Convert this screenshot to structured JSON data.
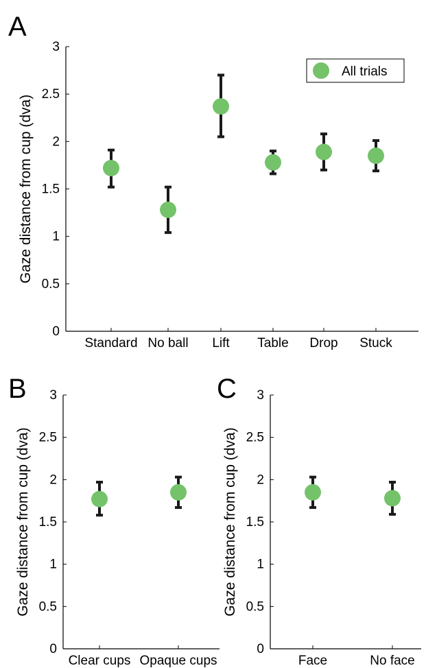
{
  "chart_data": [
    {
      "panel": "A",
      "type": "scatter",
      "ylabel": "Gaze distance from cup (dva)",
      "xlabel": "",
      "ylim": [
        0,
        3
      ],
      "yticks": [
        "0",
        "0.5",
        "1",
        "1.5",
        "2",
        "2.5",
        "3"
      ],
      "categories": [
        "Standard",
        "No ball",
        "Lift",
        "Table",
        "Drop",
        "Stuck"
      ],
      "series": [
        {
          "name": "All trials",
          "values": [
            1.72,
            1.28,
            2.37,
            1.78,
            1.89,
            1.85
          ],
          "err_low": [
            1.52,
            1.04,
            2.05,
            1.66,
            1.7,
            1.69
          ],
          "err_high": [
            1.91,
            1.52,
            2.7,
            1.9,
            2.08,
            2.01
          ]
        }
      ],
      "marker_color": "#74c26a",
      "errorbar_color": "#1a1a1a",
      "legend": {
        "label": "All trials",
        "placement": "top-right"
      },
      "grid": false
    },
    {
      "panel": "B",
      "type": "scatter",
      "ylabel": "Gaze distance from cup (dva)",
      "xlabel": "",
      "ylim": [
        0,
        3
      ],
      "yticks": [
        "0",
        "0.5",
        "1",
        "1.5",
        "2",
        "2.5",
        "3"
      ],
      "categories": [
        "Clear cups",
        "Opaque cups"
      ],
      "series": [
        {
          "values": [
            1.77,
            1.85
          ],
          "err_low": [
            1.58,
            1.67
          ],
          "err_high": [
            1.97,
            2.03
          ]
        }
      ],
      "marker_color": "#74c26a",
      "errorbar_color": "#1a1a1a",
      "grid": false
    },
    {
      "panel": "C",
      "type": "scatter",
      "ylabel": "Gaze distance from cup (dva)",
      "xlabel": "",
      "ylim": [
        0,
        3
      ],
      "yticks": [
        "0",
        "0.5",
        "1",
        "1.5",
        "2",
        "2.5",
        "3"
      ],
      "categories": [
        "Face",
        "No face"
      ],
      "series": [
        {
          "values": [
            1.85,
            1.78
          ],
          "err_low": [
            1.67,
            1.59
          ],
          "err_high": [
            2.03,
            1.97
          ]
        }
      ],
      "marker_color": "#74c26a",
      "errorbar_color": "#1a1a1a",
      "grid": false
    }
  ]
}
